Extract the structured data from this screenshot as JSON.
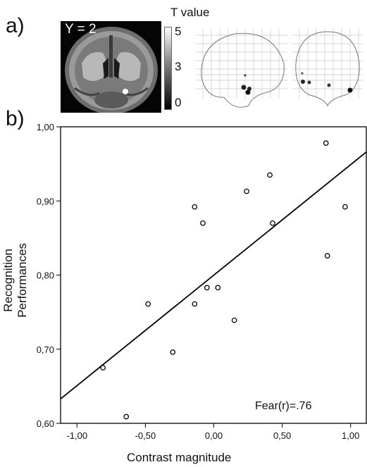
{
  "panels": {
    "a_label": "a)",
    "b_label": "b)"
  },
  "brain_slice": {
    "label": "Y = 2"
  },
  "colorbar": {
    "title": "T value",
    "ticks": [
      "5",
      "3",
      "0"
    ]
  },
  "chart_data": {
    "type": "scatter",
    "xlabel": "Contrast magnitude",
    "ylabel": "Recognition Performances",
    "annotation": "Fear(r)=.76",
    "xlim": [
      -1.12,
      1.12
    ],
    "ylim": [
      0.6,
      1.0
    ],
    "xticks": [
      -1.0,
      -0.5,
      0.0,
      0.5,
      1.0
    ],
    "xtick_labels": [
      "-1,00",
      "-0,50",
      "0,00",
      "0,50",
      "1,00"
    ],
    "yticks": [
      0.6,
      0.7,
      0.8,
      0.9,
      1.0
    ],
    "ytick_labels": [
      "0,60",
      "0,70",
      "0,80",
      "0,90",
      "1,00"
    ],
    "grid": false,
    "points": [
      {
        "x": -0.81,
        "y": 0.675
      },
      {
        "x": -0.64,
        "y": 0.609
      },
      {
        "x": -0.48,
        "y": 0.761
      },
      {
        "x": -0.3,
        "y": 0.696
      },
      {
        "x": -0.14,
        "y": 0.892
      },
      {
        "x": -0.14,
        "y": 0.761
      },
      {
        "x": -0.08,
        "y": 0.87
      },
      {
        "x": -0.05,
        "y": 0.783
      },
      {
        "x": 0.03,
        "y": 0.783
      },
      {
        "x": 0.15,
        "y": 0.739
      },
      {
        "x": 0.24,
        "y": 0.913
      },
      {
        "x": 0.41,
        "y": 0.935
      },
      {
        "x": 0.43,
        "y": 0.87
      },
      {
        "x": 0.82,
        "y": 0.978
      },
      {
        "x": 0.83,
        "y": 0.826
      },
      {
        "x": 0.96,
        "y": 0.892
      }
    ],
    "fit_line": [
      {
        "x": -1.12,
        "y": 0.633
      },
      {
        "x": 1.12,
        "y": 0.966
      }
    ]
  }
}
